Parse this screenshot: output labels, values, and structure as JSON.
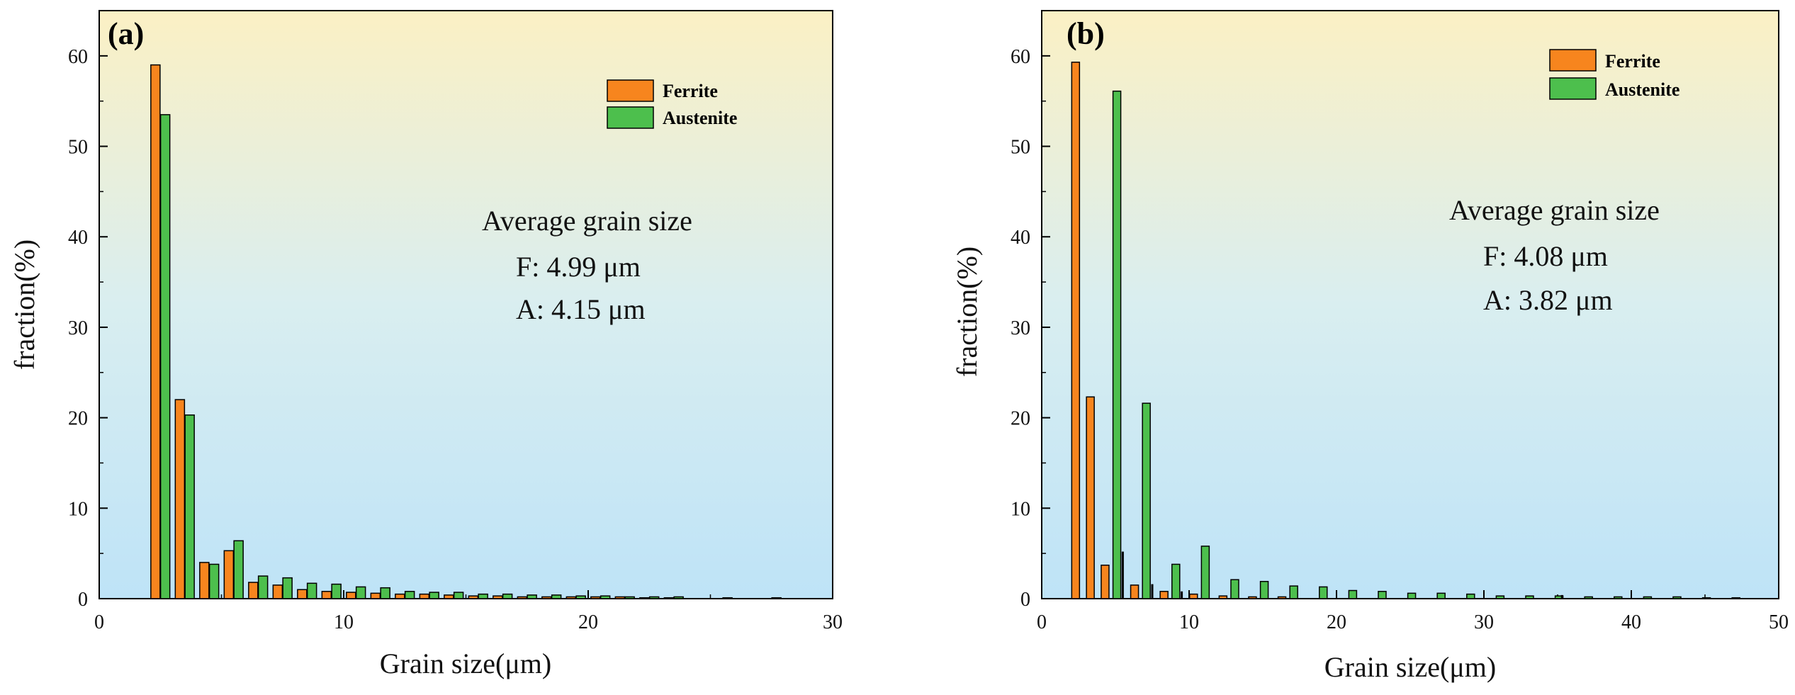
{
  "chart_data": [
    {
      "type": "bar",
      "panel_label": "(a)",
      "title": "",
      "xlabel": "Grain size(μm)",
      "ylabel": "fraction(%)",
      "xlim": [
        0,
        30
      ],
      "ylim": [
        0,
        65
      ],
      "xticks": [
        0,
        10,
        20,
        30
      ],
      "yticks": [
        0,
        10,
        20,
        30,
        40,
        50,
        60
      ],
      "legend_position": "top-right",
      "series": [
        {
          "name": "Ferrite",
          "color": "#F7851E",
          "x": [
            2.3,
            3.3,
            4.3,
            5.3,
            6.3,
            7.3,
            8.3,
            9.3,
            10.3,
            11.3,
            12.3,
            13.3,
            14.3,
            15.3,
            16.3,
            17.3,
            18.3,
            19.3,
            20.3,
            21.3,
            22.3,
            23.3
          ],
          "values": [
            59,
            22,
            4.0,
            5.3,
            1.8,
            1.5,
            1.0,
            0.8,
            0.7,
            0.6,
            0.5,
            0.5,
            0.4,
            0.3,
            0.3,
            0.2,
            0.2,
            0.2,
            0.2,
            0.2,
            0.1,
            0.1
          ]
        },
        {
          "name": "Austenite",
          "color": "#4DBF4D",
          "x": [
            2.7,
            3.7,
            4.7,
            5.7,
            6.7,
            7.7,
            8.7,
            9.7,
            10.7,
            11.7,
            12.7,
            13.7,
            14.7,
            15.7,
            16.7,
            17.7,
            18.7,
            19.7,
            20.7,
            21.7,
            22.7,
            23.7,
            25.7,
            27.7
          ],
          "values": [
            53.5,
            20.3,
            3.8,
            6.4,
            2.5,
            2.3,
            1.7,
            1.6,
            1.3,
            1.2,
            0.8,
            0.7,
            0.7,
            0.5,
            0.5,
            0.4,
            0.4,
            0.3,
            0.3,
            0.2,
            0.2,
            0.2,
            0.1,
            0.1
          ]
        }
      ],
      "annotation": {
        "heading": "Average grain size",
        "line1": "F: 4.99 μm",
        "line2": "A: 4.15 μm"
      }
    },
    {
      "type": "bar",
      "panel_label": "(b)",
      "title": "",
      "xlabel": "Grain size(μm)",
      "ylabel": "fraction(%)",
      "xlim": [
        0,
        50
      ],
      "ylim": [
        0,
        65
      ],
      "xticks": [
        0,
        10,
        20,
        30,
        40,
        50
      ],
      "yticks": [
        0,
        10,
        20,
        30,
        40,
        50,
        60
      ],
      "legend_position": "top-right",
      "series": [
        {
          "name": "Ferrite",
          "color": "#F7851E",
          "x": [
            2.3,
            3.3,
            4.3,
            6.3,
            8.3,
            10.3,
            12.3,
            14.3,
            16.3
          ],
          "values": [
            59.3,
            22.3,
            3.7,
            1.5,
            0.8,
            0.5,
            0.3,
            0.2,
            0.2
          ],
          "hidden_names": []
        },
        {
          "name": "Austenite",
          "color": "#4DBF4D",
          "x": [
            5.1,
            7.1,
            9.1,
            11.1,
            13.1,
            15.1,
            17.1,
            19.1,
            21.1,
            23.1,
            25.1,
            27.1,
            29.1,
            31.1,
            33.1,
            35.1,
            37.1,
            39.1,
            41.1,
            43.1,
            45.1,
            47.1
          ],
          "values": [
            56.1,
            21.6,
            3.8,
            5.8,
            2.1,
            1.9,
            1.4,
            1.3,
            0.9,
            0.8,
            0.6,
            0.6,
            0.5,
            0.3,
            0.3,
            0.3,
            0.2,
            0.2,
            0.2,
            0.2,
            0.1,
            0.1
          ]
        }
      ],
      "extra_black_ticks_x": [
        5.5,
        7.5,
        9.5,
        35.3
      ],
      "extra_black_ticks_values": [
        5.2,
        1.6,
        0.8,
        0.4
      ],
      "annotation": {
        "heading": "Average grain size",
        "line1": "F: 4.08 μm",
        "line2": "A: 3.82 μm"
      }
    }
  ]
}
